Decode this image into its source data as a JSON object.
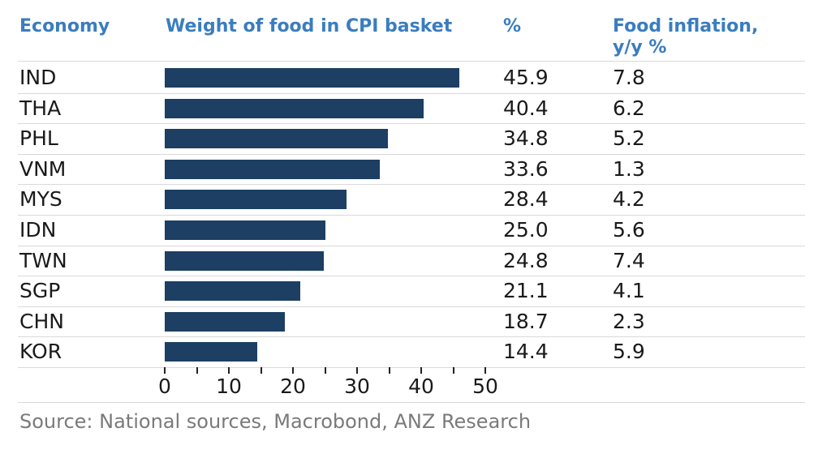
{
  "headers": {
    "economy": "Economy",
    "weight": "Weight of food in CPI basket",
    "percent": "%",
    "inflation": "Food inflation, y/y %"
  },
  "source": "Source: National sources, Macrobond, ANZ Research",
  "colors": {
    "header": "#3a7dbf",
    "bar": "#1c3f63"
  },
  "chart_data": {
    "type": "bar",
    "orientation": "horizontal",
    "categories": [
      "IND",
      "THA",
      "PHL",
      "VNM",
      "MYS",
      "IDN",
      "TWN",
      "SGP",
      "CHN",
      "KOR"
    ],
    "series": [
      {
        "name": "Weight of food in CPI basket",
        "values": [
          45.9,
          40.4,
          34.8,
          33.6,
          28.4,
          25.0,
          24.8,
          21.1,
          18.7,
          14.4
        ]
      }
    ],
    "table_columns": {
      "percent": [
        "45.9",
        "40.4",
        "34.8",
        "33.6",
        "28.4",
        "25.0",
        "24.8",
        "21.1",
        "18.7",
        "14.4"
      ],
      "food_inflation": [
        "7.8",
        "6.2",
        "5.2",
        "1.3",
        "4.2",
        "5.6",
        "7.4",
        "4.1",
        "2.3",
        "5.9"
      ]
    },
    "xlim": [
      0,
      50
    ],
    "xticks": [
      "0",
      "10",
      "20",
      "30",
      "40",
      "50"
    ],
    "grid": false
  }
}
